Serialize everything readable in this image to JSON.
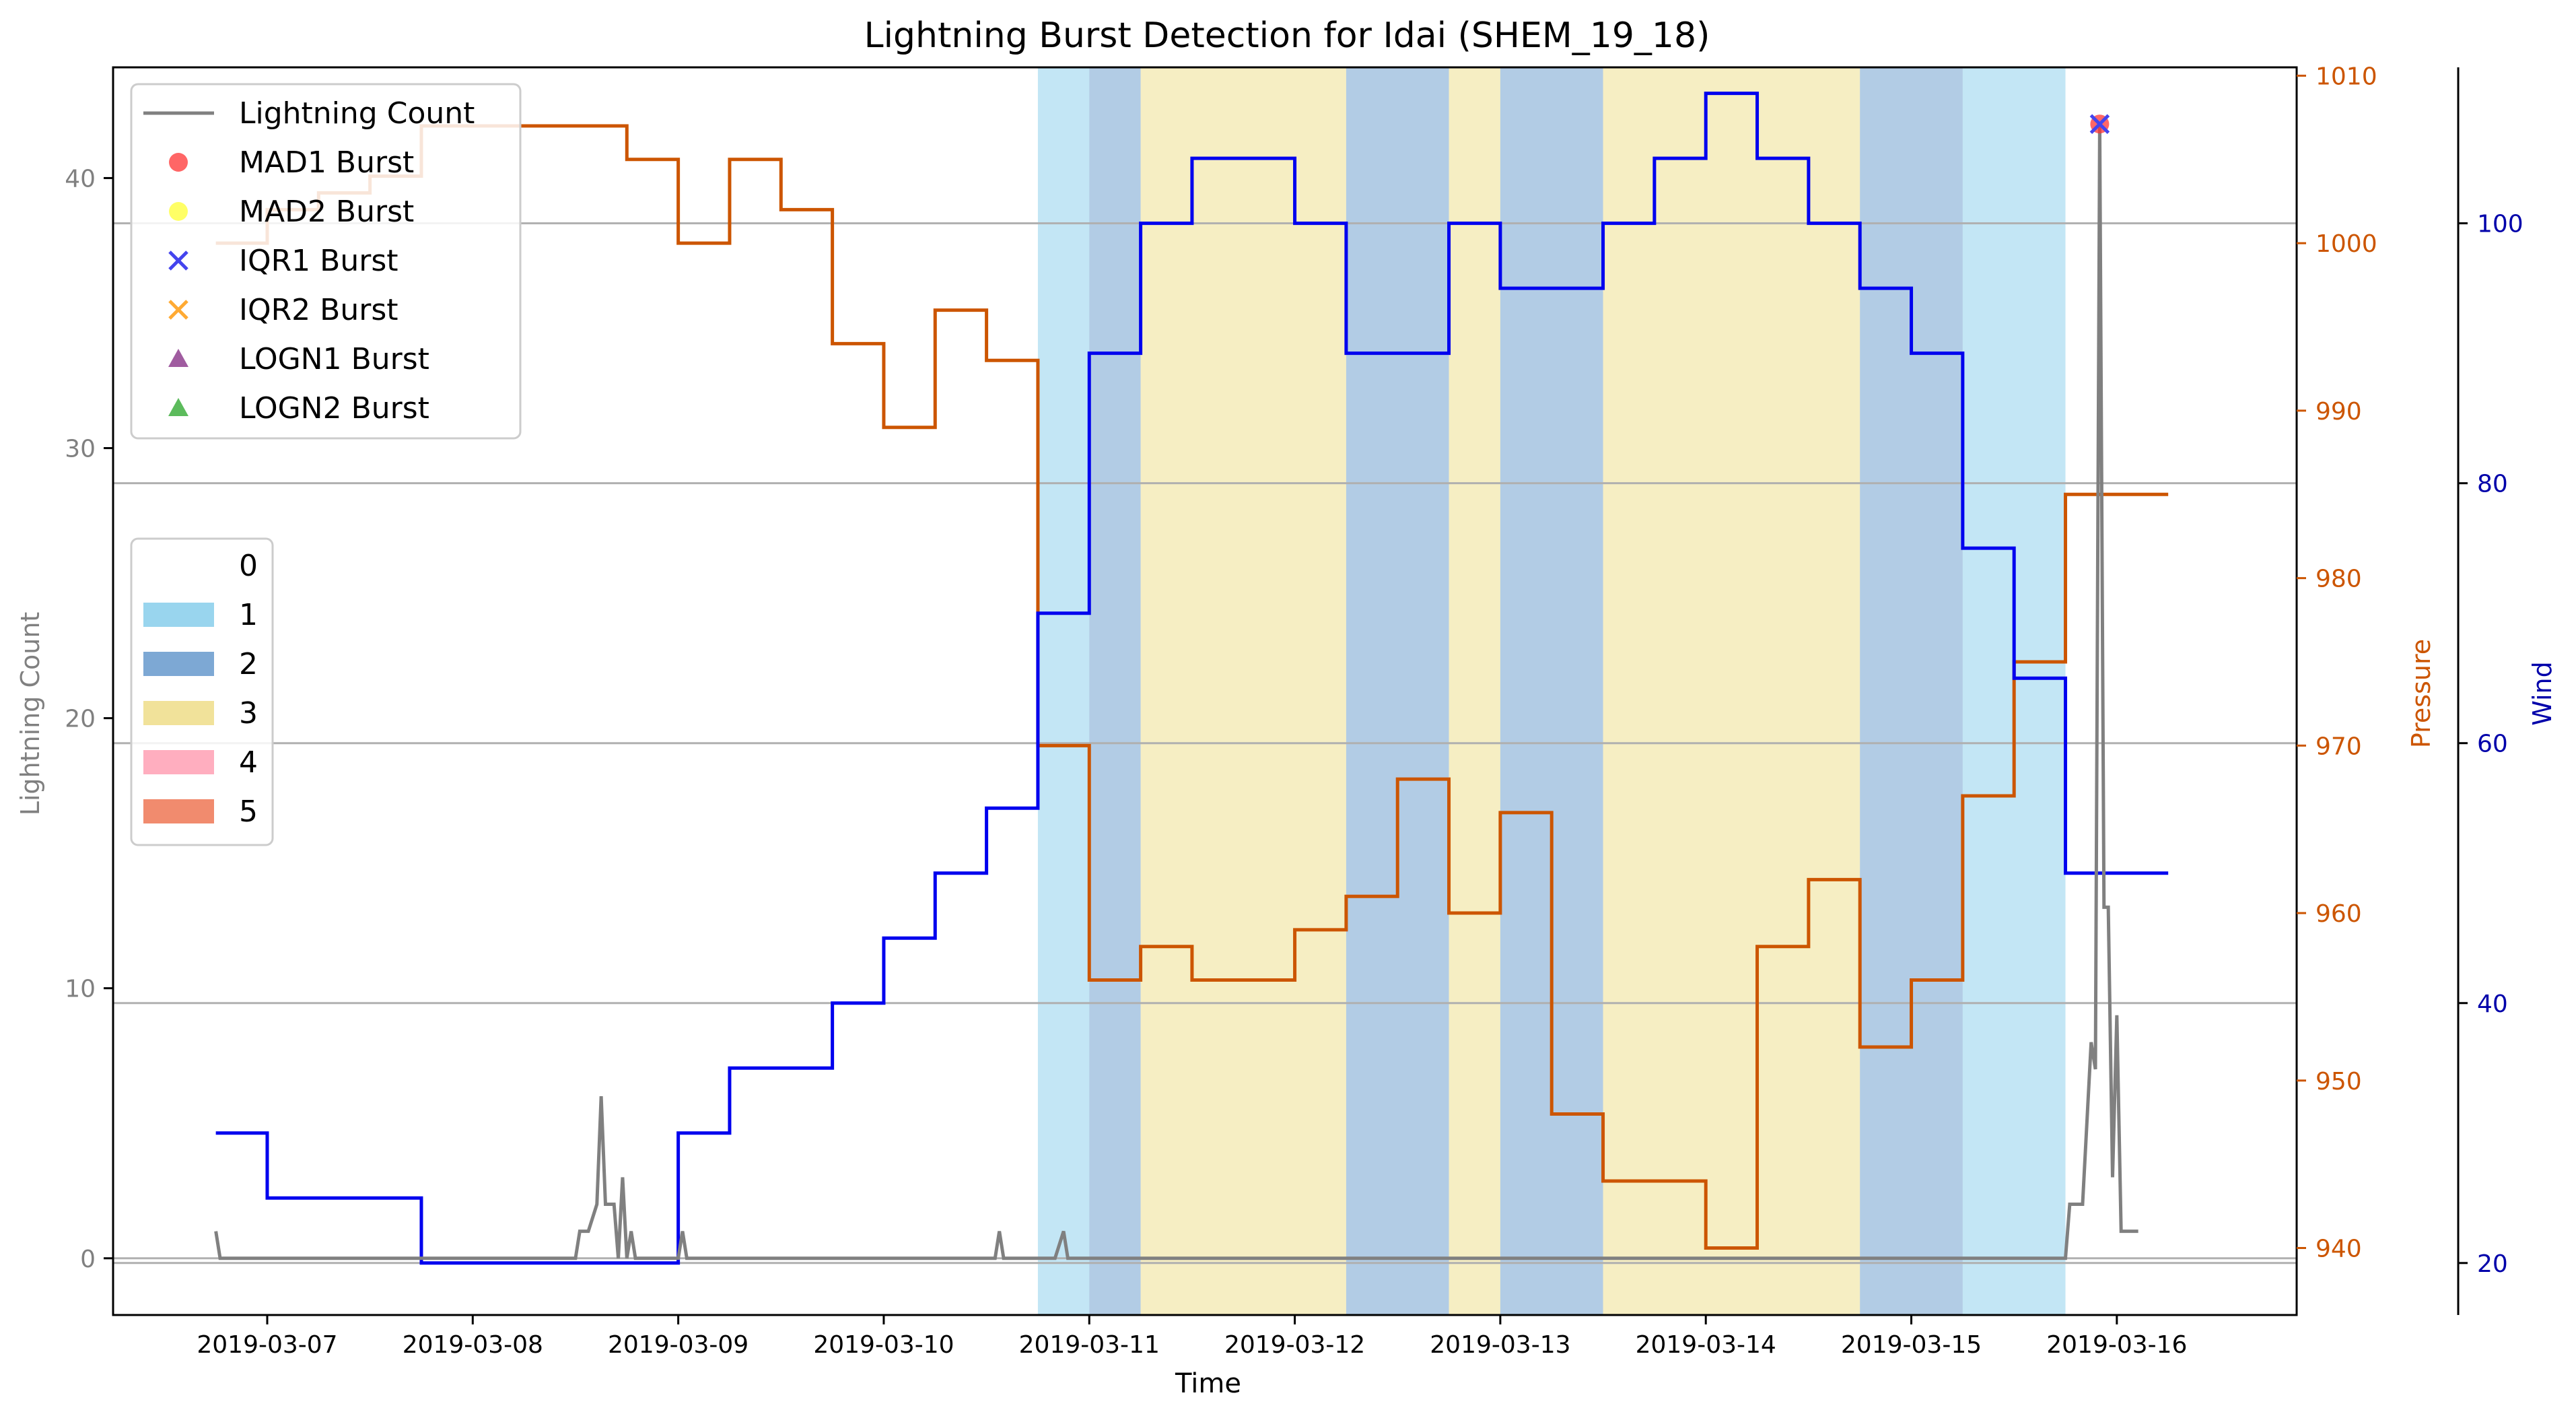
{
  "chart_data": {
    "type": "line",
    "title": "Lightning Burst Detection for Idai (SHEM_19_18)",
    "xlabel": "Time",
    "ylabel_left": "Lightning Count",
    "ylabel_pressure": "Pressure",
    "ylabel_wind": "Wind",
    "x_ticks": [
      "2019-03-07",
      "2019-03-08",
      "2019-03-09",
      "2019-03-10",
      "2019-03-11",
      "2019-03-12",
      "2019-03-13",
      "2019-03-14",
      "2019-03-15",
      "2019-03-16"
    ],
    "xlim": [
      "2019-03-06 06:00",
      "2019-03-16 21:00"
    ],
    "ylim_lightning": [
      -2.1,
      44.1
    ],
    "ylim_pressure": [
      936,
      1010.5
    ],
    "ylim_wind": [
      16,
      112
    ],
    "yticks_lightning": [
      0,
      10,
      20,
      30,
      40
    ],
    "yticks_pressure": [
      940,
      950,
      960,
      970,
      980,
      990,
      1000,
      1010
    ],
    "yticks_wind": [
      20,
      40,
      60,
      80,
      100
    ],
    "grid": "horizontal lines at wind ticks",
    "colors": {
      "lightning": "#808080",
      "pressure": "#cc5500",
      "wind": "#0000ee",
      "cat1": "#87ceeb",
      "cat2": "#6699cc",
      "cat3": "#eedd88",
      "cat4": "#ffa0b4",
      "cat5": "#ee7755"
    },
    "lightning": {
      "name": "Lightning Count",
      "x": [
        "2019-03-06 18:00",
        "2019-03-06 18:30",
        "2019-03-07 00:00",
        "2019-03-08 12:00",
        "2019-03-08 12:30",
        "2019-03-08 13:30",
        "2019-03-08 14:30",
        "2019-03-08 15:00",
        "2019-03-08 15:30",
        "2019-03-08 16:30",
        "2019-03-08 17:00",
        "2019-03-08 17:30",
        "2019-03-08 18:00",
        "2019-03-08 18:30",
        "2019-03-08 19:00",
        "2019-03-08 19:30",
        "2019-03-08 20:00",
        "2019-03-09 00:00",
        "2019-03-09 00:30",
        "2019-03-09 01:00",
        "2019-03-10 13:00",
        "2019-03-10 13:30",
        "2019-03-10 14:00",
        "2019-03-10 20:00",
        "2019-03-10 21:00",
        "2019-03-10 21:30",
        "2019-03-10 22:00",
        "2019-03-15 18:00",
        "2019-03-15 18:30",
        "2019-03-15 20:00",
        "2019-03-15 21:00",
        "2019-03-15 21:30",
        "2019-03-15 22:00",
        "2019-03-15 22:30",
        "2019-03-15 23:00",
        "2019-03-15 23:30",
        "2019-03-16 00:00",
        "2019-03-16 00:30",
        "2019-03-16 01:00",
        "2019-03-16 01:30",
        "2019-03-16 02:00",
        "2019-03-16 02:30"
      ],
      "y": [
        1,
        0,
        0,
        0,
        1,
        1,
        2,
        6,
        2,
        2,
        0,
        3,
        0,
        1,
        0,
        0,
        0,
        0,
        1,
        0,
        0,
        1,
        0,
        0,
        1,
        0,
        0,
        0,
        2,
        2,
        8,
        7,
        42,
        13,
        13,
        3,
        9,
        1,
        1,
        1,
        1,
        1
      ]
    },
    "pressure": {
      "name": "Pressure",
      "steps": [
        [
          "2019-03-06 18:00",
          1000
        ],
        [
          "2019-03-07 00:00",
          1002
        ],
        [
          "2019-03-07 06:00",
          1003
        ],
        [
          "2019-03-07 12:00",
          1004
        ],
        [
          "2019-03-07 18:00",
          1007
        ],
        [
          "2019-03-08 06:00",
          1007
        ],
        [
          "2019-03-08 12:00",
          1007
        ],
        [
          "2019-03-08 18:00",
          1005
        ],
        [
          "2019-03-09 00:00",
          1000
        ],
        [
          "2019-03-09 06:00",
          1005
        ],
        [
          "2019-03-09 12:00",
          1002
        ],
        [
          "2019-03-09 18:00",
          994
        ],
        [
          "2019-03-10 00:00",
          989
        ],
        [
          "2019-03-10 06:00",
          996
        ],
        [
          "2019-03-10 12:00",
          993
        ],
        [
          "2019-03-10 18:00",
          970
        ],
        [
          "2019-03-11 00:00",
          956
        ],
        [
          "2019-03-11 06:00",
          958
        ],
        [
          "2019-03-11 12:00",
          956
        ],
        [
          "2019-03-12 00:00",
          959
        ],
        [
          "2019-03-12 06:00",
          961
        ],
        [
          "2019-03-12 12:00",
          968
        ],
        [
          "2019-03-12 18:00",
          960
        ],
        [
          "2019-03-13 00:00",
          966
        ],
        [
          "2019-03-13 06:00",
          948
        ],
        [
          "2019-03-13 12:00",
          944
        ],
        [
          "2019-03-14 00:00",
          940
        ],
        [
          "2019-03-14 06:00",
          958
        ],
        [
          "2019-03-14 12:00",
          962
        ],
        [
          "2019-03-14 18:00",
          952
        ],
        [
          "2019-03-15 00:00",
          956
        ],
        [
          "2019-03-15 06:00",
          967
        ],
        [
          "2019-03-15 12:00",
          975
        ],
        [
          "2019-03-15 18:00",
          985
        ],
        [
          "2019-03-16 06:00",
          985
        ]
      ]
    },
    "wind": {
      "name": "Wind",
      "steps": [
        [
          "2019-03-06 18:00",
          30
        ],
        [
          "2019-03-07 00:00",
          25
        ],
        [
          "2019-03-07 06:00",
          25
        ],
        [
          "2019-03-07 12:00",
          25
        ],
        [
          "2019-03-07 18:00",
          20
        ],
        [
          "2019-03-08 06:00",
          20
        ],
        [
          "2019-03-08 12:00",
          20
        ],
        [
          "2019-03-08 18:00",
          20
        ],
        [
          "2019-03-09 00:00",
          30
        ],
        [
          "2019-03-09 06:00",
          35
        ],
        [
          "2019-03-09 12:00",
          35
        ],
        [
          "2019-03-09 18:00",
          40
        ],
        [
          "2019-03-10 00:00",
          45
        ],
        [
          "2019-03-10 06:00",
          50
        ],
        [
          "2019-03-10 12:00",
          55
        ],
        [
          "2019-03-10 18:00",
          70
        ],
        [
          "2019-03-11 00:00",
          90
        ],
        [
          "2019-03-11 06:00",
          100
        ],
        [
          "2019-03-11 12:00",
          105
        ],
        [
          "2019-03-12 00:00",
          100
        ],
        [
          "2019-03-12 06:00",
          90
        ],
        [
          "2019-03-12 18:00",
          100
        ],
        [
          "2019-03-13 00:00",
          95
        ],
        [
          "2019-03-13 12:00",
          100
        ],
        [
          "2019-03-13 18:00",
          105
        ],
        [
          "2019-03-14 00:00",
          110
        ],
        [
          "2019-03-14 06:00",
          105
        ],
        [
          "2019-03-14 12:00",
          100
        ],
        [
          "2019-03-14 18:00",
          95
        ],
        [
          "2019-03-15 00:00",
          90
        ],
        [
          "2019-03-15 06:00",
          75
        ],
        [
          "2019-03-15 12:00",
          65
        ],
        [
          "2019-03-15 18:00",
          50
        ],
        [
          "2019-03-16 06:00",
          50
        ]
      ]
    },
    "categories": {
      "labels": [
        "0",
        "1",
        "2",
        "3",
        "4",
        "5"
      ],
      "spans": [
        {
          "start": "2019-03-10 18:00",
          "end": "2019-03-11 00:00",
          "cat": 1
        },
        {
          "start": "2019-03-11 00:00",
          "end": "2019-03-11 06:00",
          "cat": 2
        },
        {
          "start": "2019-03-11 06:00",
          "end": "2019-03-12 06:00",
          "cat": 3
        },
        {
          "start": "2019-03-12 06:00",
          "end": "2019-03-12 18:00",
          "cat": 2
        },
        {
          "start": "2019-03-12 18:00",
          "end": "2019-03-13 00:00",
          "cat": 3
        },
        {
          "start": "2019-03-13 00:00",
          "end": "2019-03-13 12:00",
          "cat": 2
        },
        {
          "start": "2019-03-13 12:00",
          "end": "2019-03-14 18:00",
          "cat": 3
        },
        {
          "start": "2019-03-14 18:00",
          "end": "2019-03-15 06:00",
          "cat": 2
        },
        {
          "start": "2019-03-15 06:00",
          "end": "2019-03-15 18:00",
          "cat": 1
        }
      ]
    },
    "bursts": [
      {
        "method": "MAD1",
        "x": "2019-03-15 22:00",
        "y": 42
      },
      {
        "method": "IQR1",
        "x": "2019-03-15 22:00",
        "y": 42
      }
    ],
    "legend_lines": [
      {
        "label": "Lightning Count",
        "marker": "line",
        "color": "#808080"
      },
      {
        "label": "MAD1 Burst",
        "marker": "circle",
        "color": "#ff3333"
      },
      {
        "label": "MAD2 Burst",
        "marker": "circle",
        "color": "#ffff33"
      },
      {
        "label": "IQR1 Burst",
        "marker": "x",
        "color": "#4444ee"
      },
      {
        "label": "IQR2 Burst",
        "marker": "x",
        "color": "#ffaa33"
      },
      {
        "label": "LOGN1 Burst",
        "marker": "triangle",
        "color": "#883388"
      },
      {
        "label": "LOGN2 Burst",
        "marker": "triangle",
        "color": "#33aa33"
      }
    ],
    "legend_placement_lines": "top-left",
    "legend_placement_categories": "middle-left"
  }
}
